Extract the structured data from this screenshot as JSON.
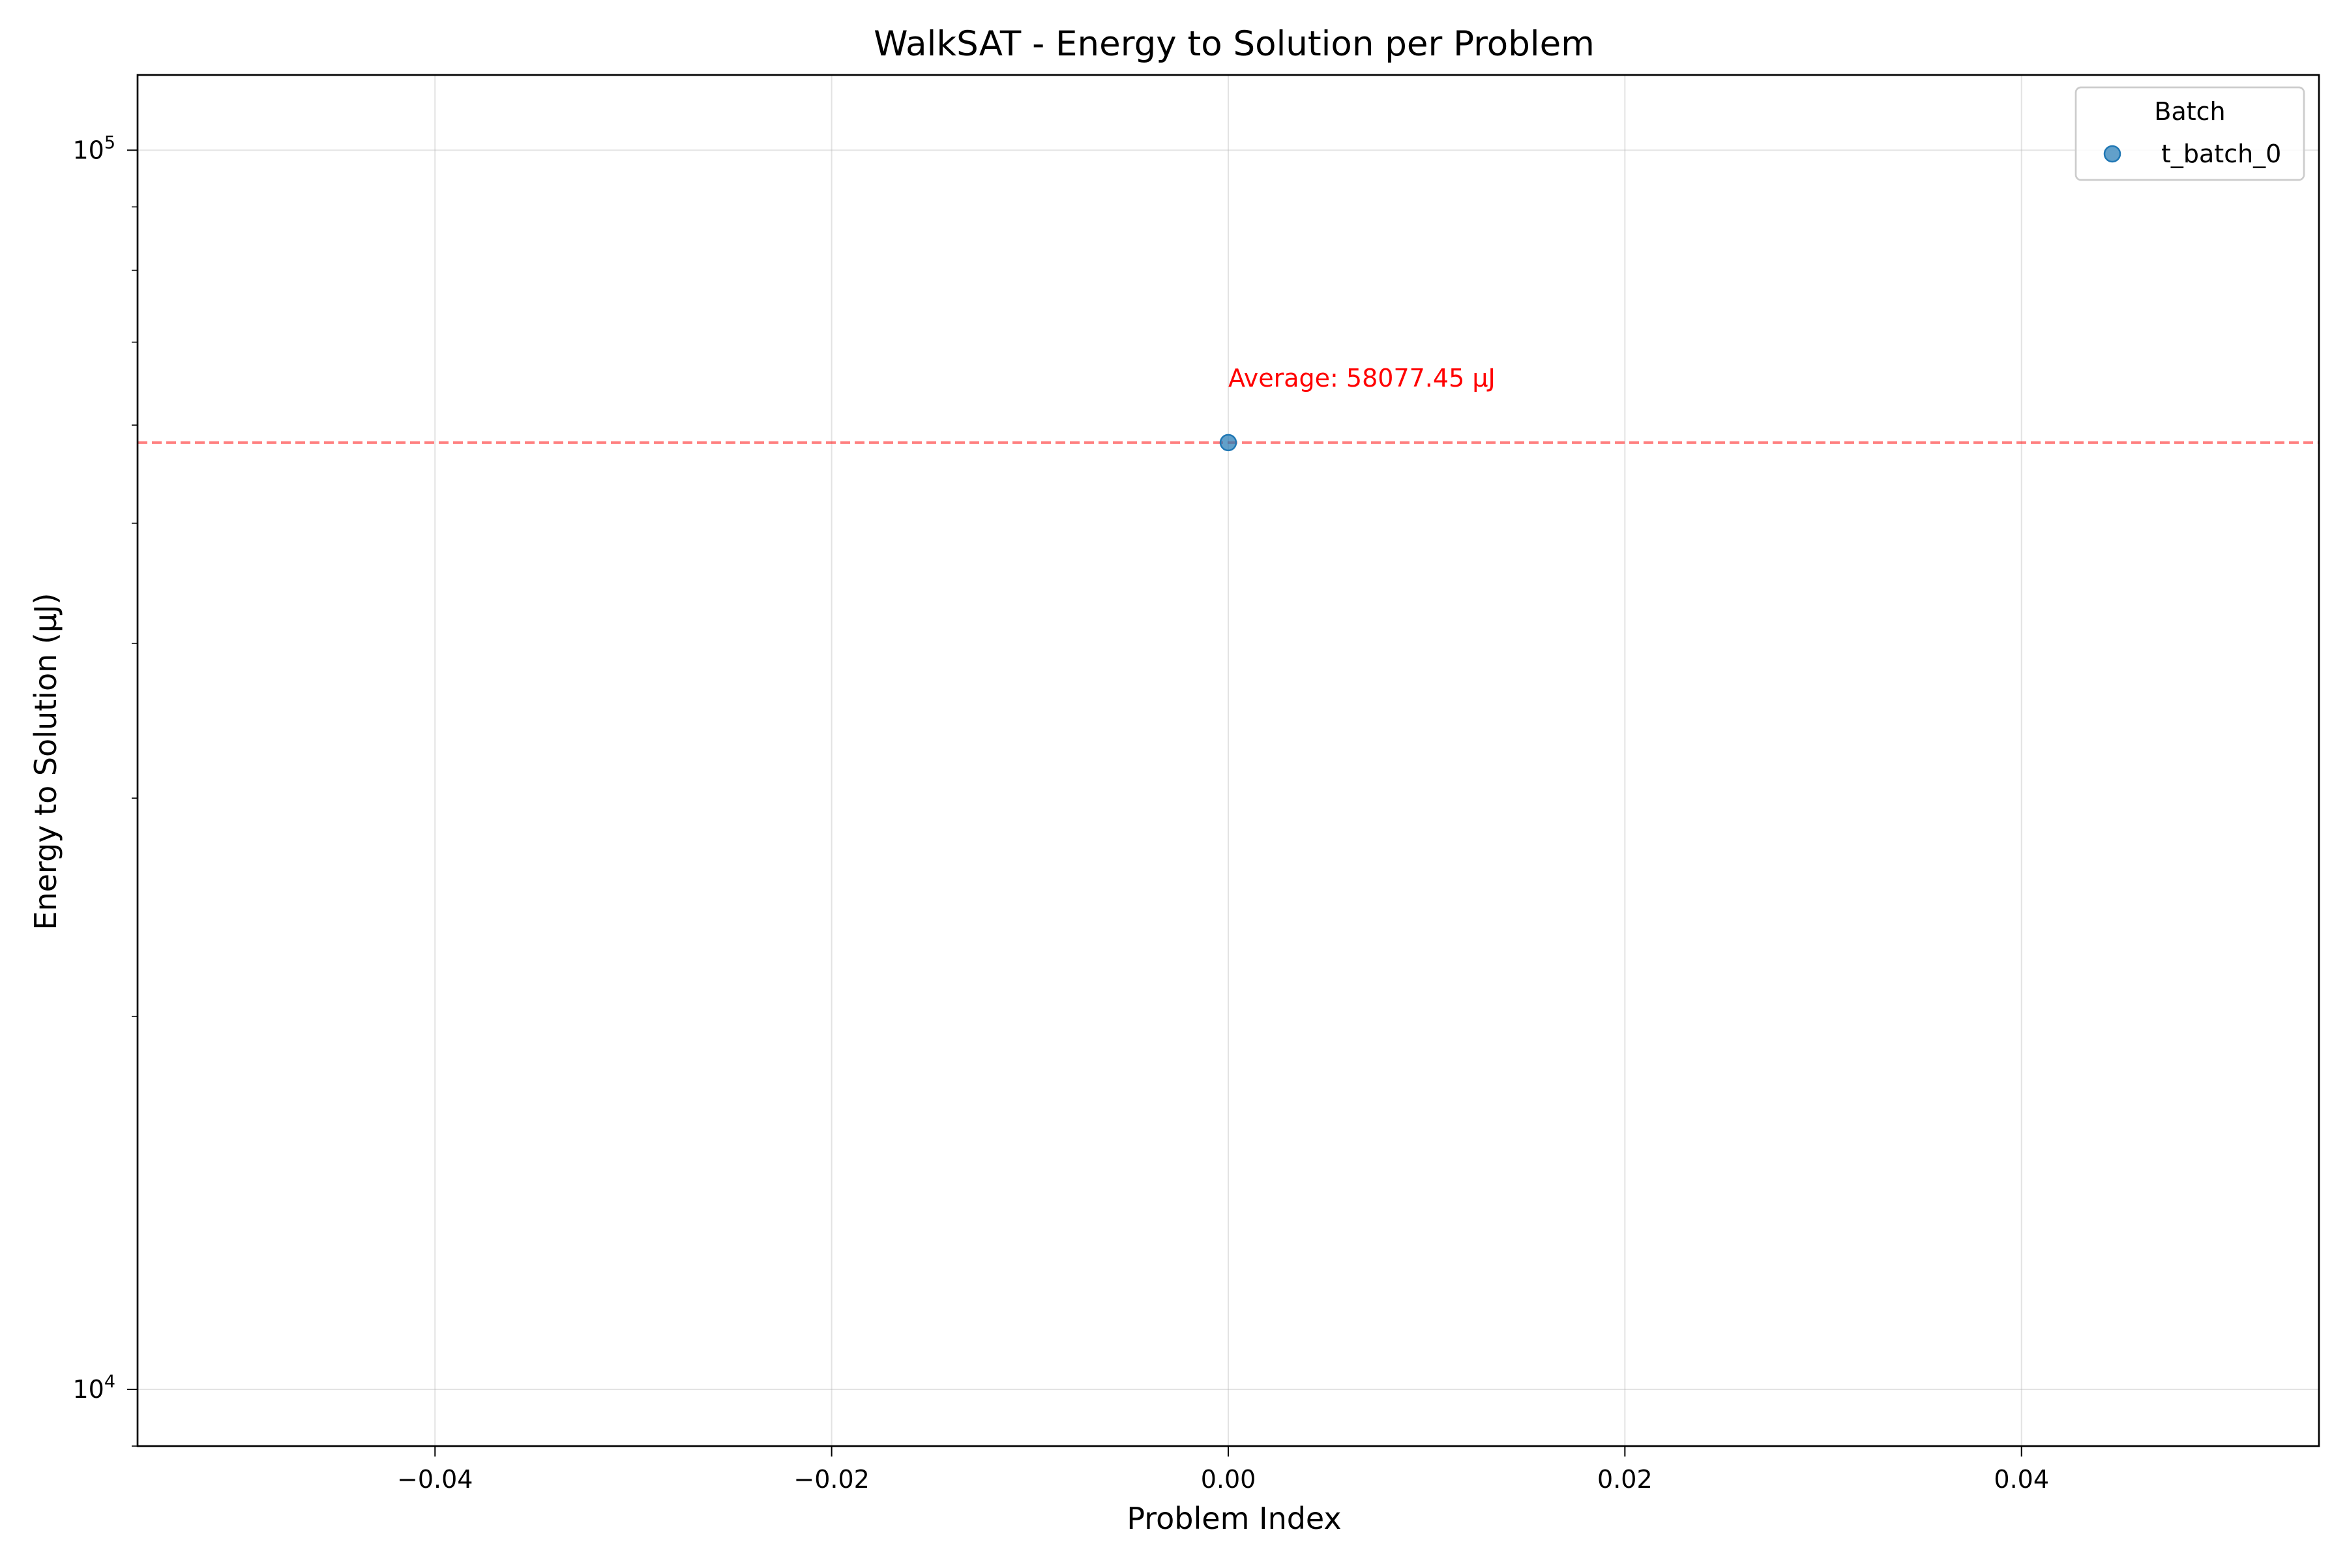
{
  "chart_data": {
    "type": "scatter",
    "title": "WalkSAT - Energy to Solution per Problem",
    "xlabel": "Problem Index",
    "ylabel": "Energy to Solution (μJ)",
    "xlim": [
      -0.055,
      0.055
    ],
    "ylim": [
      9000,
      115000
    ],
    "yscale": "log",
    "grid": true,
    "x_ticks": [
      {
        "value": -0.04,
        "label": "−0.04"
      },
      {
        "value": -0.02,
        "label": "−0.02"
      },
      {
        "value": 0.0,
        "label": "0.00"
      },
      {
        "value": 0.02,
        "label": "0.02"
      },
      {
        "value": 0.04,
        "label": "0.04"
      }
    ],
    "y_major_ticks": [
      {
        "value": 10000,
        "base": "10",
        "exp": "4"
      },
      {
        "value": 100000,
        "base": "10",
        "exp": "5"
      }
    ],
    "y_minor_ticks": [
      9000,
      20000,
      30000,
      40000,
      50000,
      60000,
      70000,
      80000,
      90000
    ],
    "legend": {
      "title": "Batch",
      "position": "top-right"
    },
    "series": [
      {
        "name": "t_batch_0",
        "color": "#1f77b4",
        "points": [
          {
            "x": 0.0,
            "y": 58077.45
          }
        ]
      }
    ],
    "average_line": {
      "value": 58077.45,
      "color": "#ff0000",
      "label": "Average: 58077.45 μJ"
    }
  }
}
